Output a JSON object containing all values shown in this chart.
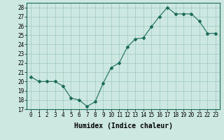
{
  "x": [
    0,
    1,
    2,
    3,
    4,
    5,
    6,
    7,
    8,
    9,
    10,
    11,
    12,
    13,
    14,
    15,
    16,
    17,
    18,
    19,
    20,
    21,
    22,
    23
  ],
  "y": [
    20.5,
    20.0,
    20.0,
    20.0,
    19.5,
    18.2,
    18.0,
    17.3,
    17.8,
    19.8,
    21.5,
    22.0,
    23.7,
    24.6,
    24.7,
    25.9,
    27.0,
    28.0,
    27.3,
    27.3,
    27.3,
    26.5,
    25.2,
    25.2
  ],
  "line_color": "#1a6b5a",
  "marker": "D",
  "marker_size": 2,
  "background_color": "#cce8e0",
  "grid_color": "#a0c8c0",
  "xlabel": "Humidex (Indice chaleur)",
  "xlim": [
    -0.5,
    23.5
  ],
  "ylim": [
    17,
    28.5
  ],
  "yticks": [
    17,
    18,
    19,
    20,
    21,
    22,
    23,
    24,
    25,
    26,
    27,
    28
  ],
  "xticks": [
    0,
    1,
    2,
    3,
    4,
    5,
    6,
    7,
    8,
    9,
    10,
    11,
    12,
    13,
    14,
    15,
    16,
    17,
    18,
    19,
    20,
    21,
    22,
    23
  ],
  "tick_fontsize": 5.5,
  "xlabel_fontsize": 7
}
